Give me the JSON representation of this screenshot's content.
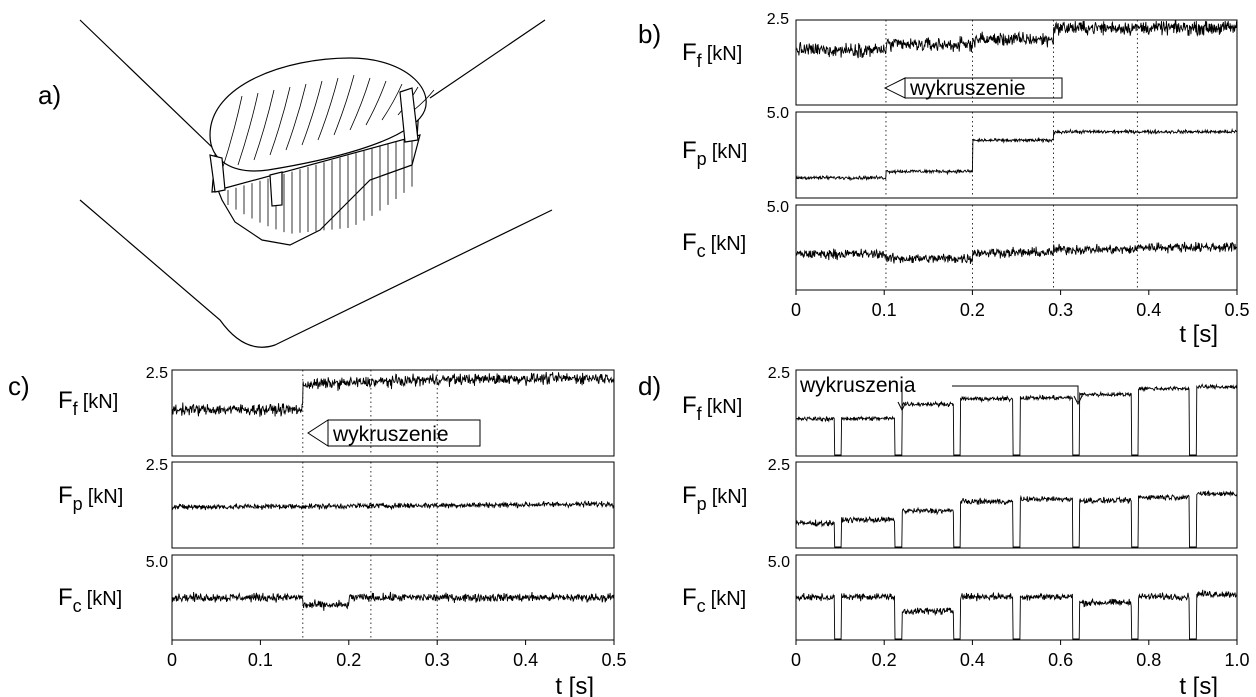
{
  "panels": {
    "a": {
      "letter": "a)"
    },
    "b": {
      "letter": "b)"
    },
    "c": {
      "letter": "c)"
    },
    "d": {
      "letter": "d)"
    }
  },
  "chart_data": [
    {
      "id": "b",
      "type": "line",
      "xlim": [
        0,
        0.5
      ],
      "x_ticks": [
        "0",
        "0.1",
        "0.2",
        "0.3",
        "0.4",
        "0.5"
      ],
      "xlabel": "t [s]",
      "annotation": "wykruszenie",
      "event_times": [
        0.102,
        0.2,
        0.292,
        0.387
      ],
      "rows": [
        {
          "label_main": "F",
          "label_sub": "f",
          "label_unit": "[kN]",
          "ytop": "2.5",
          "ymax": 2.5,
          "series": [
            {
              "x": [
                0,
                0.102,
                0.102,
                0.2,
                0.2,
                0.292,
                0.292,
                0.5
              ],
              "y": [
                1.62,
                1.62,
                1.77,
                1.77,
                1.93,
                1.93,
                2.27,
                2.27
              ]
            }
          ],
          "noise": 0.1
        },
        {
          "label_main": "F",
          "label_sub": "p",
          "label_unit": "[kN]",
          "ytop": "5.0",
          "ymax": 5.0,
          "series": [
            {
              "x": [
                0,
                0.102,
                0.102,
                0.2,
                0.2,
                0.292,
                0.292,
                0.5
              ],
              "y": [
                1.18,
                1.18,
                1.55,
                1.55,
                3.35,
                3.35,
                3.85,
                3.85
              ]
            }
          ],
          "noise": 0.05
        },
        {
          "label_main": "F",
          "label_sub": "c",
          "label_unit": "[kN]",
          "ytop": "5.0",
          "ymax": 5.0,
          "series": [
            {
              "x": [
                0,
                0.102,
                0.102,
                0.2,
                0.2,
                0.292,
                0.292,
                0.387,
                0.387,
                0.5
              ],
              "y": [
                2.12,
                2.12,
                1.85,
                1.85,
                2.2,
                2.2,
                2.38,
                2.38,
                2.52,
                2.52
              ]
            }
          ],
          "noise": 0.14
        }
      ]
    },
    {
      "id": "c",
      "type": "line",
      "xlim": [
        0,
        0.5
      ],
      "x_ticks": [
        "0",
        "0.1",
        "0.2",
        "0.3",
        "0.4",
        "0.5"
      ],
      "xlabel": "t [s]",
      "annotation": "wykruszenie",
      "event_times": [
        0.148,
        0.225,
        0.3
      ],
      "rows": [
        {
          "label_main": "F",
          "label_sub": "f",
          "label_unit": "[kN]",
          "ytop": "2.5",
          "ymax": 2.5,
          "series": [
            {
              "x": [
                0,
                0.148,
                0.148,
                0.3,
                0.5
              ],
              "y": [
                1.35,
                1.35,
                2.08,
                2.22,
                2.27
              ]
            }
          ],
          "noise": 0.08
        },
        {
          "label_main": "F",
          "label_sub": "p",
          "label_unit": "[kN]",
          "ytop": "2.5",
          "ymax": 2.5,
          "series": [
            {
              "x": [
                0,
                0.2,
                0.5
              ],
              "y": [
                1.19,
                1.22,
                1.28
              ]
            }
          ],
          "noise": 0.04
        },
        {
          "label_main": "F",
          "label_sub": "c",
          "label_unit": "[kN]",
          "ytop": "5.0",
          "ymax": 5.0,
          "series": [
            {
              "x": [
                0,
                0.148,
                0.148,
                0.2,
                0.2,
                0.5
              ],
              "y": [
                2.5,
                2.5,
                2.05,
                2.05,
                2.5,
                2.5
              ]
            }
          ],
          "noise": 0.12
        }
      ]
    },
    {
      "id": "d",
      "type": "line",
      "xlim": [
        0,
        1.0
      ],
      "x_ticks": [
        "0",
        "0.2",
        "0.4",
        "0.6",
        "0.8",
        "1.0"
      ],
      "xlabel": "t [s]",
      "annotation": "wykruszenia",
      "cut_times": [
        0.095,
        0.232,
        0.365,
        0.5,
        0.635,
        0.768,
        0.9
      ],
      "rows": [
        {
          "label_main": "F",
          "label_sub": "f",
          "label_unit": "[kN]",
          "ytop": "2.5",
          "ymax": 2.5,
          "levels": [
            1.08,
            1.09,
            1.51,
            1.66,
            1.69,
            1.79,
            1.96,
            2.01
          ],
          "noise": 0.03
        },
        {
          "label_main": "F",
          "label_sub": "p",
          "label_unit": "[kN]",
          "ytop": "2.5",
          "ymax": 2.5,
          "levels": [
            0.72,
            0.82,
            1.08,
            1.35,
            1.42,
            1.38,
            1.48,
            1.58
          ],
          "noise": 0.04
        },
        {
          "label_main": "F",
          "label_sub": "c",
          "label_unit": "[kN]",
          "ytop": "5.0",
          "ymax": 5.0,
          "levels": [
            2.5,
            2.55,
            1.7,
            2.55,
            2.55,
            2.2,
            2.55,
            2.7
          ],
          "noise": 0.1
        }
      ]
    }
  ]
}
